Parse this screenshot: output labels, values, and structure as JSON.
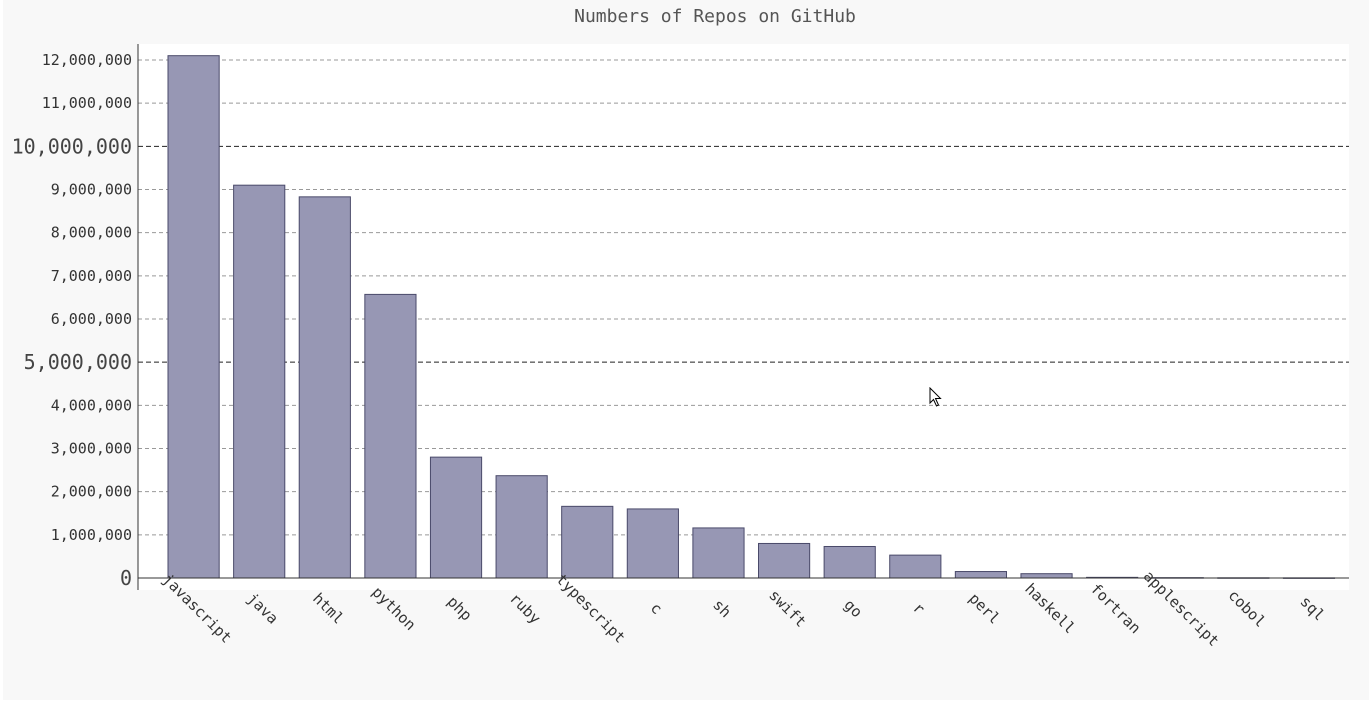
{
  "chart_data": {
    "type": "bar",
    "title": "Numbers of Repos on GitHub",
    "xlabel": "",
    "ylabel": "",
    "categories": [
      "javascript",
      "java",
      "html",
      "python",
      "php",
      "ruby",
      "typescript",
      "c",
      "sh",
      "swift",
      "go",
      "r",
      "perl",
      "haskell",
      "fortran",
      "applescript",
      "cobol",
      "sql"
    ],
    "values": [
      12100000,
      9100000,
      8830000,
      6570000,
      2800000,
      2370000,
      1660000,
      1600000,
      1160000,
      800000,
      730000,
      530000,
      150000,
      100000,
      15000,
      8000,
      5000,
      3000
    ],
    "ylim": [
      0,
      12000000
    ],
    "yticks": [
      0,
      1000000,
      2000000,
      3000000,
      4000000,
      5000000,
      6000000,
      7000000,
      8000000,
      9000000,
      10000000,
      11000000,
      12000000
    ],
    "ytick_labels": [
      "0",
      "1,000,000",
      "2,000,000",
      "3,000,000",
      "4,000,000",
      "5,000,000",
      "6,000,000",
      "7,000,000",
      "8,000,000",
      "9,000,000",
      "10,000,000",
      "11,000,000",
      "12,000,000"
    ],
    "major_ticks": [
      0,
      5000000,
      10000000
    ],
    "grid": true,
    "legend": "none",
    "colors": {
      "background": "#f8f8f8",
      "plot_background": "#ffffff",
      "bar_fill": "#9797b4",
      "bar_stroke": "#4a4a6a"
    }
  }
}
